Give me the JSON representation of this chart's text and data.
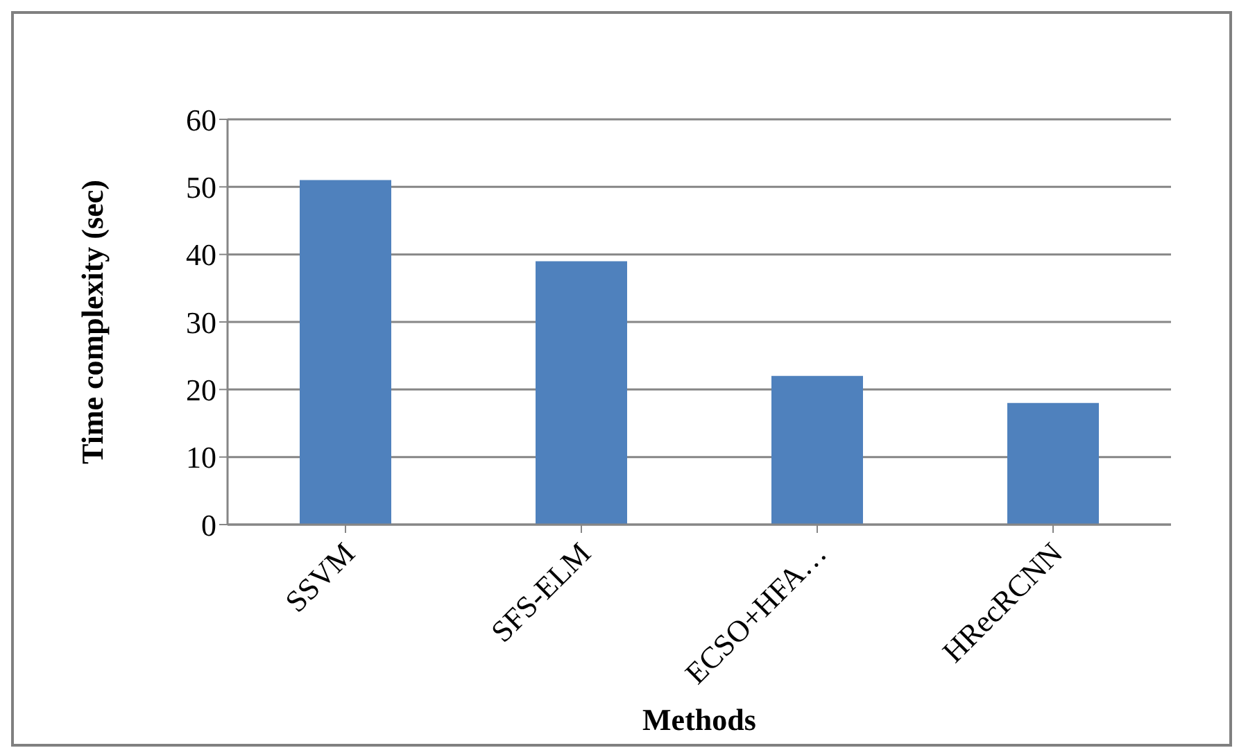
{
  "chart_data": {
    "type": "bar",
    "xlabel": "Methods",
    "ylabel": "Time complexity (sec)",
    "categories": [
      "SSVM",
      "SFS-ELM",
      "ECSO+HFA…",
      "HRecRCNN"
    ],
    "values": [
      51,
      39,
      22,
      18
    ],
    "color": "#4f81bd",
    "ylim": [
      0,
      60
    ],
    "yticks": [
      0,
      10,
      20,
      30,
      40,
      50,
      60
    ],
    "grid": "y"
  }
}
